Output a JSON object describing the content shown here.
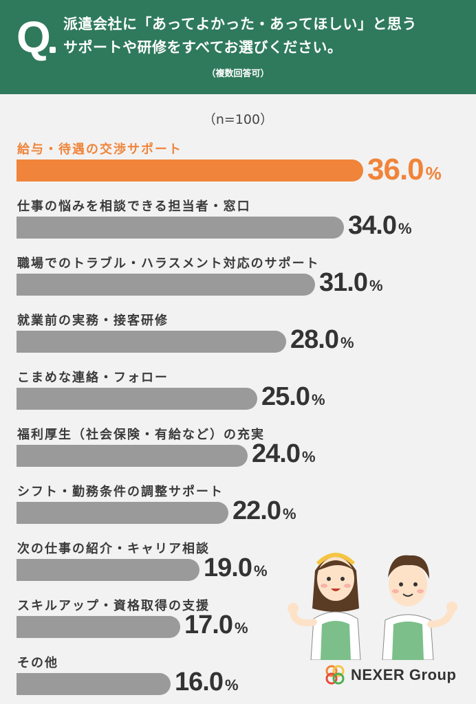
{
  "header": {
    "q_mark": "Q",
    "question_lines": [
      "派遣会社に「あってよかった・あってほしい」と思う",
      "サポートや研修をすべてお選びください。"
    ],
    "note": "（複数回答可）"
  },
  "sample": "（n=100）",
  "chart_data": {
    "type": "bar",
    "orientation": "horizontal",
    "unit": "%",
    "categories": [
      "給与・待遇の交渉サポート",
      "仕事の悩みを相談できる担当者・窓口",
      "職場でのトラブル・ハラスメント対応のサポート",
      "就業前の実務・接客研修",
      "こまめな連絡・フォロー",
      "福利厚生（社会保険・有給など）の充実",
      "シフト・勤務条件の調整サポート",
      "次の仕事の紹介・キャリア相談",
      "スキルアップ・資格取得の支援",
      "その他"
    ],
    "values": [
      36.0,
      34.0,
      31.0,
      28.0,
      25.0,
      24.0,
      22.0,
      19.0,
      17.0,
      16.0
    ],
    "highlight_index": 0,
    "colors": {
      "highlight": "#f0843a",
      "default": "#9a9a9a"
    }
  },
  "colors": {
    "header_bg": "#2f7a5c",
    "background": "#f2f2f2"
  },
  "logo": {
    "text": "NEXER Group"
  }
}
